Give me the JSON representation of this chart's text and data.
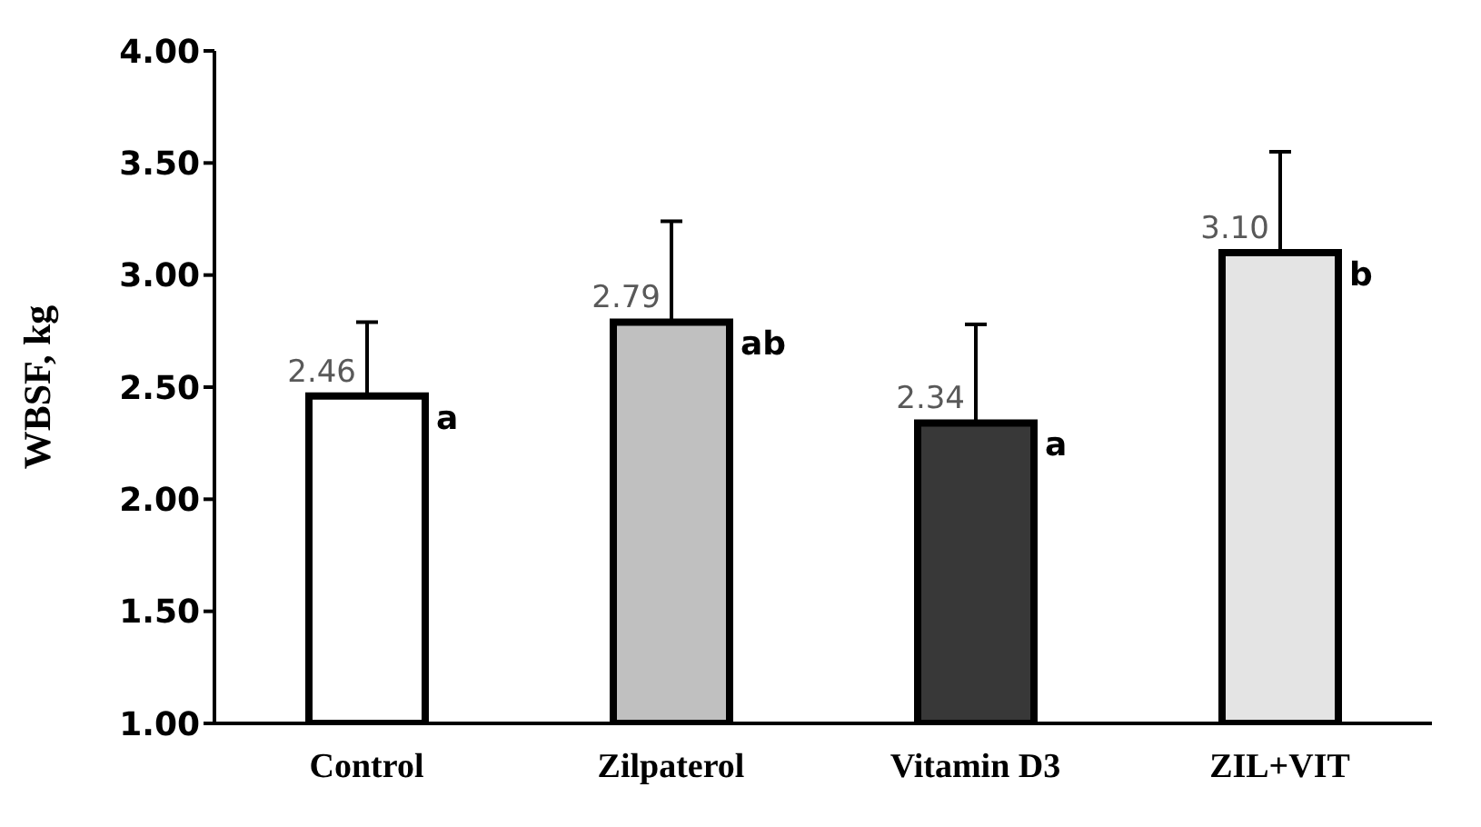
{
  "chart_data": {
    "type": "bar",
    "ylabel": "WBSF, kg",
    "categories": [
      "Control",
      "Zilpaterol",
      "Vitamin  D3",
      "ZIL+VIT"
    ],
    "values": [
      2.46,
      2.79,
      2.34,
      3.1
    ],
    "colors": [
      "#ffffff",
      "#c0c0c0",
      "#383838",
      "#e4e4e4"
    ],
    "errors": [
      [
        2.46,
        2.79
      ],
      [
        2.79,
        3.24
      ],
      [
        2.34,
        2.78
      ],
      [
        3.1,
        3.55
      ]
    ],
    "value_labels": [
      "2.46",
      "2.79",
      "2.34",
      "3.10"
    ],
    "annotations": [
      {
        "text": "a",
        "x": "Control",
        "y": 2.46
      },
      {
        "text": "ab",
        "x": "Zilpaterol",
        "y": 2.79
      },
      {
        "text": "a",
        "x": "Vitamin  D3",
        "y": 2.34
      },
      {
        "text": "b",
        "x": "ZIL+VIT",
        "y": 3.1
      }
    ],
    "ylim": [
      1,
      4
    ],
    "yticks": [
      {
        "value": 1,
        "label": "1.00"
      },
      {
        "value": 1.5,
        "label": "1.50"
      },
      {
        "value": 2,
        "label": "2.00"
      },
      {
        "value": 2.5,
        "label": "2.50"
      },
      {
        "value": 3,
        "label": "3.00"
      },
      {
        "value": 3.5,
        "label": "3.50"
      },
      {
        "value": 4,
        "label": "4.00"
      }
    ],
    "grid": false,
    "legend": false
  }
}
